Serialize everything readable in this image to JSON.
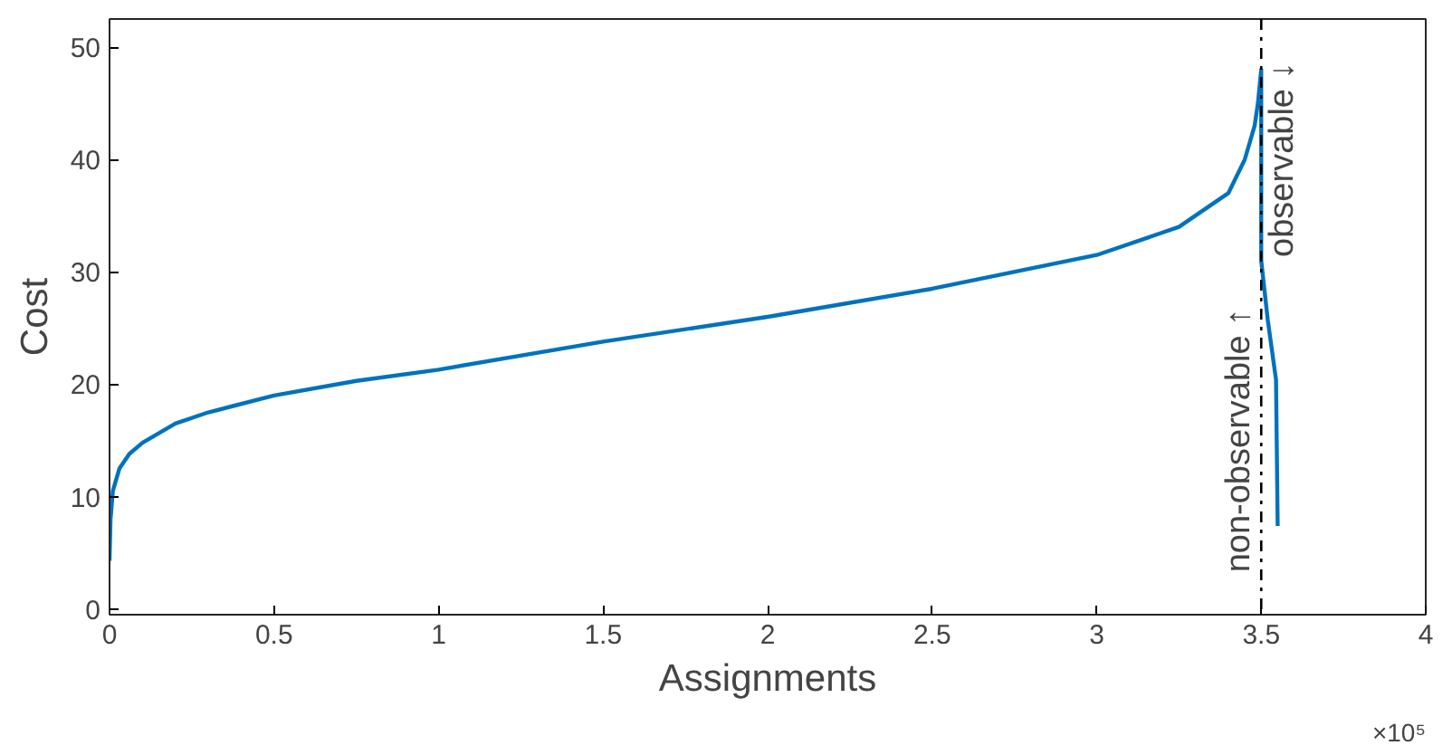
{
  "chart_data": {
    "type": "line",
    "xlabel": "Assignments",
    "ylabel": "Cost",
    "x": [
      0,
      0.003,
      0.01,
      0.03,
      0.06,
      0.1,
      0.2,
      0.3,
      0.5,
      0.75,
      1,
      1.5,
      2,
      2.5,
      3,
      3.25,
      3.4,
      3.45,
      3.48,
      3.49,
      3.5,
      3.5,
      3.52,
      3.545,
      3.55
    ],
    "series": [
      {
        "color": "#0072bd",
        "values": [
          4.3,
          8,
          10.5,
          12.5,
          13.8,
          14.8,
          16.5,
          17.5,
          19,
          20.3,
          21.3,
          23.8,
          26,
          28.5,
          31.5,
          34,
          37,
          40,
          43,
          45,
          48,
          31,
          25.7,
          20.4,
          7.4
        ]
      }
    ],
    "xlim": [
      0,
      4
    ],
    "ylim": [
      -0.5,
      52.5
    ],
    "xticks": [
      0,
      0.5,
      1,
      1.5,
      2,
      2.5,
      3,
      3.5,
      4
    ],
    "yticks": [
      0,
      10,
      20,
      30,
      40,
      50
    ],
    "ref_lines": [
      {
        "axis": "x",
        "value": 3.5,
        "label": null,
        "color": "#000000",
        "line_style": "dashdot"
      }
    ],
    "annotations": [
      {
        "text": "non-observable ↑",
        "x": 3.5,
        "y": 15
      },
      {
        "text": "observable ↓",
        "x": 3.5,
        "y": 40
      },
      "×10⁵"
    ],
    "grid": false,
    "marker": "none",
    "line_style": "solid"
  }
}
